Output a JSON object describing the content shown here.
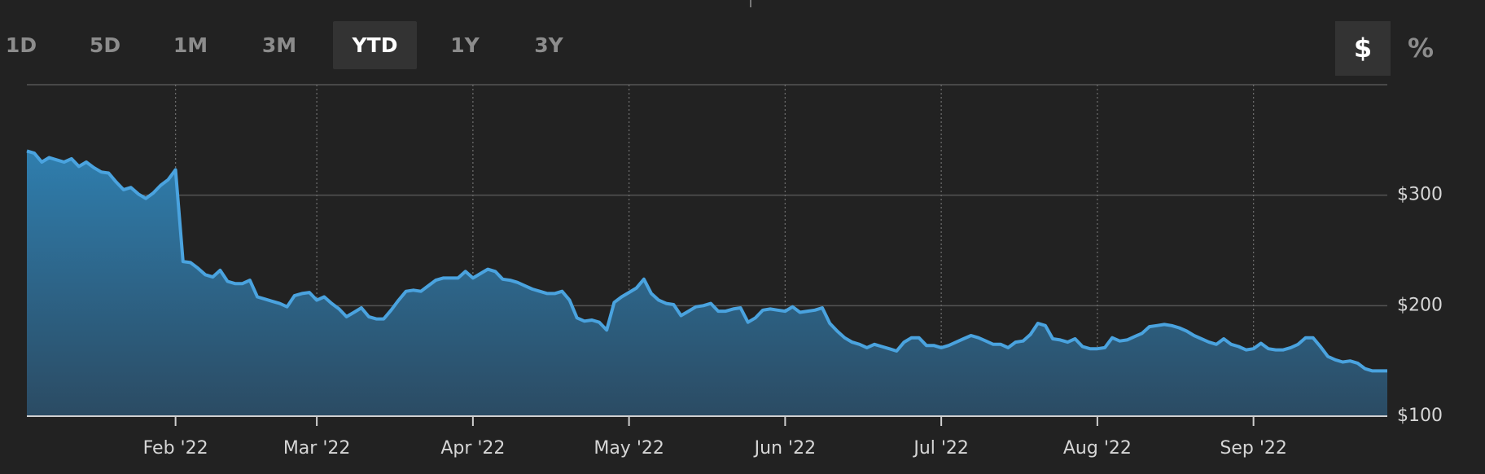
{
  "ui": {
    "ranges": [
      "1D",
      "5D",
      "1M",
      "3M",
      "YTD",
      "1Y",
      "3Y"
    ],
    "units": [
      "$",
      "%"
    ]
  },
  "chart_data": {
    "type": "area",
    "color": "#4aa3df",
    "grid": true,
    "values": [
      340,
      338,
      330,
      334,
      332,
      330,
      333,
      326,
      330,
      325,
      321,
      320,
      312,
      305,
      307,
      301,
      297,
      302,
      309,
      314,
      323,
      240,
      239,
      234,
      228,
      226,
      232,
      222,
      220,
      220,
      223,
      208,
      206,
      204,
      202,
      199,
      209,
      211,
      212,
      205,
      208,
      202,
      197,
      190,
      194,
      198,
      190,
      188,
      188,
      196,
      205,
      213,
      214,
      213,
      218,
      223,
      225,
      225,
      225,
      231,
      225,
      229,
      233,
      231,
      224,
      223,
      221,
      218,
      215,
      213,
      211,
      211,
      213,
      205,
      189,
      186,
      187,
      185,
      178,
      203,
      208,
      212,
      216,
      224,
      211,
      205,
      202,
      201,
      191,
      195,
      199,
      200,
      202,
      195,
      195,
      197,
      198,
      185,
      189,
      196,
      197,
      196,
      195,
      199,
      194,
      195,
      196,
      198,
      184,
      177,
      171,
      167,
      165,
      162,
      165,
      163,
      161,
      159,
      167,
      171,
      171,
      164,
      164,
      162,
      164,
      167,
      170,
      173,
      171,
      168,
      165,
      165,
      162,
      167,
      168,
      174,
      184,
      182,
      170,
      169,
      167,
      170,
      163,
      161,
      161,
      162,
      171,
      168,
      169,
      172,
      175,
      181,
      182,
      183,
      182,
      180,
      177,
      173,
      170,
      167,
      165,
      170,
      165,
      163,
      160,
      161,
      166,
      161,
      160,
      160,
      162,
      165,
      171,
      171,
      163,
      154,
      151,
      149,
      150,
      148,
      143,
      141,
      141,
      141
    ],
    "xlim": [
      0,
      183
    ],
    "xticks": [
      {
        "value": 20,
        "label": "Feb '22"
      },
      {
        "value": 39,
        "label": "Mar '22"
      },
      {
        "value": 60,
        "label": "Apr '22"
      },
      {
        "value": 81,
        "label": "May '22"
      },
      {
        "value": 102,
        "label": "Jun '22"
      },
      {
        "value": 123,
        "label": "Jul '22"
      },
      {
        "value": 144,
        "label": "Aug '22"
      },
      {
        "value": 165,
        "label": "Sep '22"
      }
    ],
    "ylim": [
      100,
      400
    ],
    "yticks": [
      {
        "value": 100,
        "label": "$100"
      },
      {
        "value": 200,
        "label": "$200"
      },
      {
        "value": 300,
        "label": "$300"
      }
    ]
  }
}
